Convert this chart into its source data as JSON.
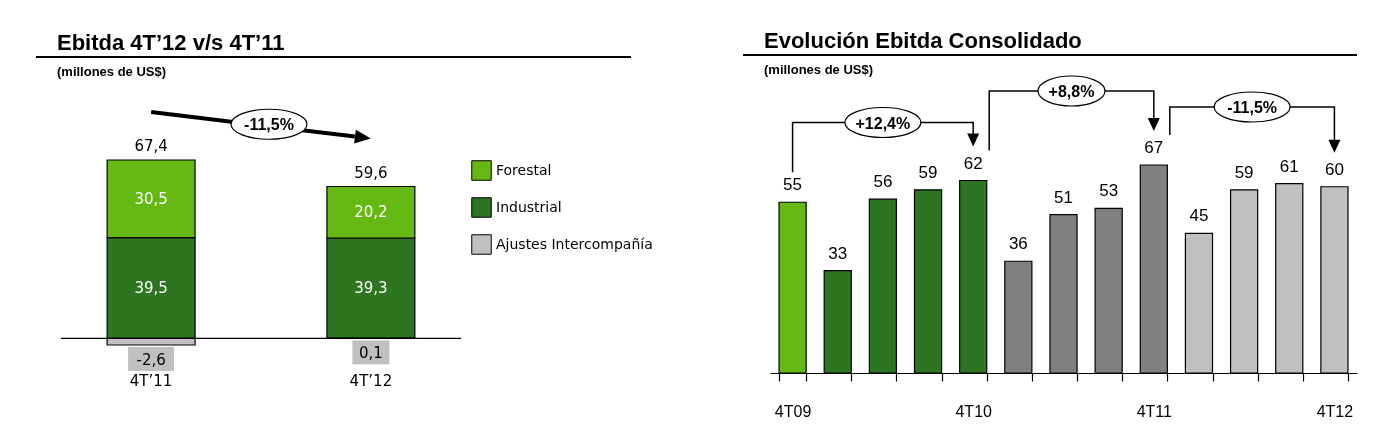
{
  "chart_data": [
    {
      "type": "bar",
      "title": "Ebitda 4T’12 v/s 4T’11",
      "subtitle": "(millones de US$)",
      "categories": [
        "4T’11",
        "4T’12"
      ],
      "stacked": true,
      "legend": "right",
      "series": [
        {
          "name": "Ajustes Intercompañía",
          "color": "#c0c0c0",
          "values": [
            -2.6,
            0.1
          ],
          "value_labels": [
            "-2,6",
            "0,1"
          ]
        },
        {
          "name": "Industrial",
          "color": "#2d7520",
          "values": [
            39.5,
            39.3
          ],
          "value_labels": [
            "39,5",
            "39,3"
          ]
        },
        {
          "name": "Forestal",
          "color": "#66b814",
          "values": [
            30.5,
            20.2
          ],
          "value_labels": [
            "30,5",
            "20,2"
          ]
        }
      ],
      "totals": [
        "67,4",
        "59,6"
      ],
      "annotations": [
        "-11,5%"
      ]
    },
    {
      "type": "bar",
      "title": "Evolución Ebitda Consolidado",
      "subtitle": "(millones de US$)",
      "categories": [
        "4T09",
        null,
        null,
        null,
        "4T10",
        null,
        null,
        null,
        "4T11",
        null,
        null,
        null,
        "4T12"
      ],
      "values": [
        55,
        33,
        56,
        59,
        62,
        36,
        51,
        53,
        67,
        45,
        59,
        61,
        60
      ],
      "colors": [
        "#66b814",
        "#2d7520",
        "#2d7520",
        "#2d7520",
        "#2d7520",
        "#808080",
        "#808080",
        "#808080",
        "#808080",
        "#c0c0c0",
        "#c0c0c0",
        "#c0c0c0",
        "#c0c0c0"
      ],
      "data_labels": true,
      "annotations": [
        "+12,4%",
        "+8,8%",
        "-11,5%"
      ]
    }
  ]
}
